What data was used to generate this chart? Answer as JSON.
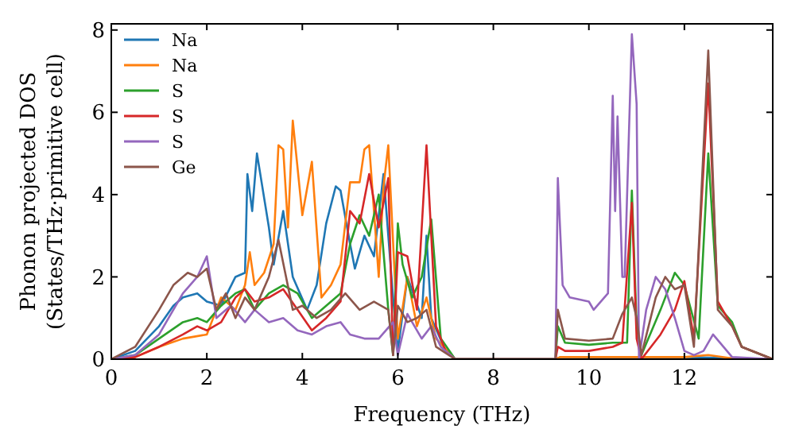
{
  "chart_data": {
    "type": "line",
    "xlabel": "Frequency (THz)",
    "ylabel": "Phonon projected DOS\n(States/THz·primitive cell)",
    "xlim": [
      0,
      13.85
    ],
    "ylim": [
      0,
      8.15
    ],
    "xticks": [
      0,
      2,
      4,
      6,
      8,
      10,
      12
    ],
    "yticks": [
      0,
      2,
      4,
      6,
      8
    ],
    "legend": "top left",
    "grid": false,
    "series": [
      {
        "name": "Na",
        "color": "#1f77b4",
        "x": [
          0,
          0.5,
          1,
          1.3,
          1.5,
          1.8,
          2,
          2.3,
          2.6,
          2.8,
          2.85,
          2.95,
          3.05,
          3.3,
          3.4,
          3.6,
          3.8,
          4.1,
          4.3,
          4.5,
          4.7,
          4.8,
          5,
          5.1,
          5.3,
          5.5,
          5.7,
          5.9,
          6,
          6.2,
          6.5,
          6.6,
          6.7,
          7,
          7.2,
          9.3,
          9.4,
          12,
          13.85
        ],
        "values": [
          0,
          0.2,
          0.8,
          1.3,
          1.5,
          1.6,
          1.4,
          1.3,
          2,
          2.1,
          4.5,
          3.6,
          5,
          3.2,
          2.3,
          3.6,
          2,
          1.2,
          1.8,
          3.3,
          4.2,
          4.1,
          2.8,
          2.2,
          3,
          2.5,
          4.5,
          1.5,
          0.2,
          2,
          1,
          3,
          1,
          0.2,
          0,
          0,
          0.05,
          0.05,
          0
        ]
      },
      {
        "name": "Na",
        "color": "#ff7f0e",
        "x": [
          0,
          0.5,
          1,
          1.5,
          2,
          2.3,
          2.6,
          2.8,
          2.9,
          3,
          3.2,
          3.4,
          3.5,
          3.6,
          3.7,
          3.8,
          4,
          4.2,
          4.4,
          4.6,
          4.8,
          5,
          5.2,
          5.3,
          5.4,
          5.6,
          5.7,
          5.8,
          6,
          6.2,
          6.4,
          6.6,
          6.8,
          7.2,
          9.3,
          9.4,
          12,
          12.5,
          13,
          13.85
        ],
        "values": [
          0,
          0.05,
          0.3,
          0.5,
          0.6,
          1.5,
          1.2,
          1.8,
          2.6,
          1.8,
          2.1,
          2.8,
          5.2,
          5.1,
          3.2,
          5.8,
          3.5,
          4.8,
          1.5,
          1.8,
          2.3,
          4.3,
          4.3,
          5.1,
          5.2,
          2,
          4.2,
          5.2,
          0.5,
          2,
          0.8,
          1.5,
          0.5,
          0,
          0,
          0.05,
          0.05,
          0.1,
          0.02,
          0
        ]
      },
      {
        "name": "S",
        "color": "#2ca02c",
        "x": [
          0,
          0.5,
          1,
          1.5,
          1.8,
          2,
          2.3,
          2.6,
          2.8,
          3,
          3.3,
          3.6,
          3.9,
          4.2,
          4.5,
          4.8,
          5,
          5.2,
          5.4,
          5.6,
          5.8,
          5.9,
          6,
          6.1,
          6.3,
          6.5,
          6.7,
          6.9,
          7.2,
          9.3,
          9.35,
          9.5,
          10,
          10.5,
          10.8,
          10.9,
          11,
          11.1,
          11.5,
          11.8,
          12,
          12.3,
          12.5,
          12.7,
          13,
          13.2,
          13.85
        ],
        "values": [
          0,
          0.1,
          0.5,
          0.9,
          1,
          0.9,
          1.3,
          1.6,
          1.7,
          1.2,
          1.6,
          1.8,
          1.6,
          1.0,
          1.3,
          1.6,
          2.8,
          3.5,
          3.0,
          4.0,
          1.2,
          0.1,
          3.3,
          2.3,
          1.5,
          2.0,
          3.4,
          0.5,
          0,
          0,
          0.8,
          0.4,
          0.35,
          0.4,
          0.4,
          4.1,
          0.8,
          0.1,
          1.2,
          2.1,
          1.8,
          0.5,
          5.0,
          1.3,
          0.9,
          0.3,
          0
        ]
      },
      {
        "name": "S",
        "color": "#d62728",
        "x": [
          0,
          0.5,
          1,
          1.5,
          1.8,
          2,
          2.3,
          2.6,
          2.8,
          3,
          3.3,
          3.6,
          3.9,
          4.2,
          4.5,
          4.8,
          5,
          5.2,
          5.4,
          5.6,
          5.8,
          5.9,
          6,
          6.2,
          6.4,
          6.6,
          6.8,
          7,
          7.2,
          9.3,
          9.35,
          9.5,
          10,
          10.5,
          10.7,
          10.9,
          11,
          11.1,
          11.5,
          11.8,
          12,
          12.2,
          12.5,
          12.7,
          13,
          13.2,
          13.85
        ],
        "values": [
          0,
          0.05,
          0.3,
          0.6,
          0.8,
          0.7,
          0.9,
          1.5,
          1.7,
          1.4,
          1.5,
          1.7,
          1.2,
          0.7,
          1.0,
          1.4,
          3.6,
          3.3,
          4.5,
          3.2,
          4.4,
          0.1,
          2.6,
          2.5,
          1.2,
          5.2,
          0.8,
          0.2,
          0,
          0,
          0.3,
          0.2,
          0.2,
          0.3,
          0.4,
          3.8,
          0.5,
          0,
          0.6,
          1.2,
          1.9,
          0.5,
          6.7,
          1.4,
          0.8,
          0.3,
          0
        ]
      },
      {
        "name": "S",
        "color": "#9467bd",
        "x": [
          0,
          0.5,
          1,
          1.5,
          1.8,
          2,
          2.2,
          2.5,
          2.8,
          3,
          3.3,
          3.6,
          3.9,
          4.2,
          4.5,
          4.8,
          5,
          5.3,
          5.6,
          5.9,
          6,
          6.2,
          6.5,
          6.7,
          6.9,
          7.2,
          9.3,
          9.35,
          9.45,
          9.6,
          10,
          10.1,
          10.4,
          10.5,
          10.55,
          10.6,
          10.7,
          10.75,
          10.9,
          11,
          11.05,
          11.2,
          11.4,
          11.6,
          11.8,
          12,
          12.2,
          12.4,
          12.6,
          13,
          13.85
        ],
        "values": [
          0,
          0.1,
          0.6,
          1.6,
          2.0,
          2.5,
          1.0,
          1.3,
          0.9,
          1.2,
          0.9,
          1.0,
          0.7,
          0.6,
          0.8,
          0.9,
          0.6,
          0.5,
          0.5,
          0.9,
          0.1,
          1.1,
          0.5,
          0.8,
          0.3,
          0,
          0,
          4.4,
          1.8,
          1.5,
          1.4,
          1.2,
          1.6,
          6.4,
          3.6,
          5.9,
          2.0,
          2.0,
          7.9,
          6.2,
          0,
          1.2,
          2.0,
          1.7,
          1.0,
          0.2,
          0.1,
          0.2,
          0.6,
          0.05,
          0
        ]
      },
      {
        "name": "Ge",
        "color": "#8c564b",
        "x": [
          0,
          0.5,
          1,
          1.3,
          1.6,
          1.8,
          2,
          2.2,
          2.4,
          2.6,
          2.8,
          3,
          3.3,
          3.5,
          3.8,
          4,
          4.3,
          4.6,
          4.9,
          5.2,
          5.5,
          5.8,
          5.9,
          6,
          6.2,
          6.4,
          6.6,
          6.8,
          7.2,
          9.3,
          9.35,
          9.5,
          10,
          10.5,
          10.7,
          10.9,
          11,
          11.1,
          11.4,
          11.6,
          11.8,
          12,
          12.2,
          12.5,
          12.7,
          13,
          13.2,
          13.85
        ],
        "values": [
          0,
          0.3,
          1.2,
          1.8,
          2.1,
          2.0,
          2.2,
          1.2,
          1.6,
          1.0,
          1.5,
          1.2,
          2.0,
          2.9,
          1.2,
          1.3,
          1.0,
          1.2,
          1.6,
          1.2,
          1.4,
          1.2,
          0.1,
          1.3,
          0.9,
          1.0,
          1.2,
          0.3,
          0,
          0,
          1.2,
          0.5,
          0.45,
          0.5,
          1.1,
          1.5,
          1.0,
          0.1,
          1.5,
          2.0,
          1.7,
          1.8,
          0.3,
          7.5,
          1.2,
          0.8,
          0.3,
          0
        ]
      }
    ]
  }
}
